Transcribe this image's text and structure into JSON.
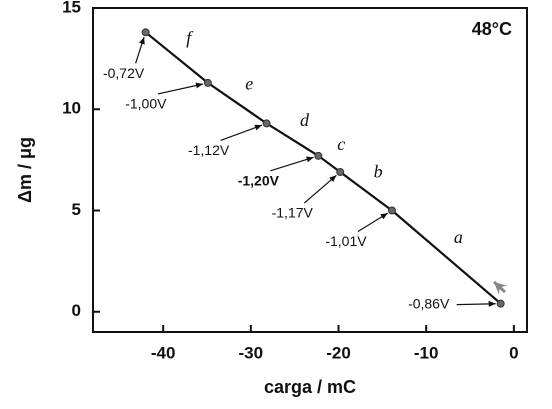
{
  "chart_data": {
    "type": "line",
    "title": "48°C",
    "x_label": "carga / mC",
    "y_label": "Δm / μg",
    "x": [
      -42,
      -34.9,
      -28.2,
      -22.3,
      -19.8,
      -13.9,
      -1.5
    ],
    "series": [
      {
        "color": "#111111",
        "values": [
          13.8,
          11.3,
          9.3,
          7.7,
          6.9,
          5.0,
          0.4
        ]
      }
    ],
    "point_labels": [
      "-0,72V",
      "-1,00V",
      "-1,12V",
      "-1,20V",
      "-1,17V",
      "-1,01V",
      "-0,86V"
    ],
    "point_label_bold": [
      false,
      false,
      false,
      true,
      false,
      false,
      false
    ],
    "segment_labels": [
      "f",
      "e",
      "d",
      "c",
      "b",
      "a"
    ],
    "xlim": [
      -48,
      1.5
    ],
    "ylim": [
      -1,
      15
    ],
    "xticks": [
      -40,
      -30,
      -20,
      -10,
      0
    ],
    "yticks": [
      0,
      5,
      10,
      15
    ]
  }
}
